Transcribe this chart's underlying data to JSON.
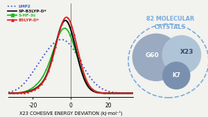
{
  "xlabel": "X23 COHESIVE ENERGY DEVIATION (kJ·mol⁻¹)",
  "xlim": [
    -33,
    33
  ],
  "ylim": [
    -0.005,
    0.115
  ],
  "x_ticks": [
    -20,
    0,
    20
  ],
  "legend": [
    {
      "label": "LMP2",
      "color": "#4455cc",
      "ls": "dotted",
      "lw": 1.4
    },
    {
      "label": "SP-B3LYP-D*",
      "color": "#111111",
      "ls": "solid",
      "lw": 1.6
    },
    {
      "label": "S-HF-3c",
      "color": "#22bb22",
      "ls": "solid",
      "lw": 1.4
    },
    {
      "label": "B3LYP-D*",
      "color": "#dd2222",
      "ls": "solid",
      "lw": 1.4
    }
  ],
  "venn_colors": {
    "G60": "#9aaac0",
    "X23": "#b0c4d8",
    "K7": "#7a90b0",
    "dashed": "#77aadd"
  },
  "title_color": "#5599cc",
  "background": "#f2f2ee"
}
